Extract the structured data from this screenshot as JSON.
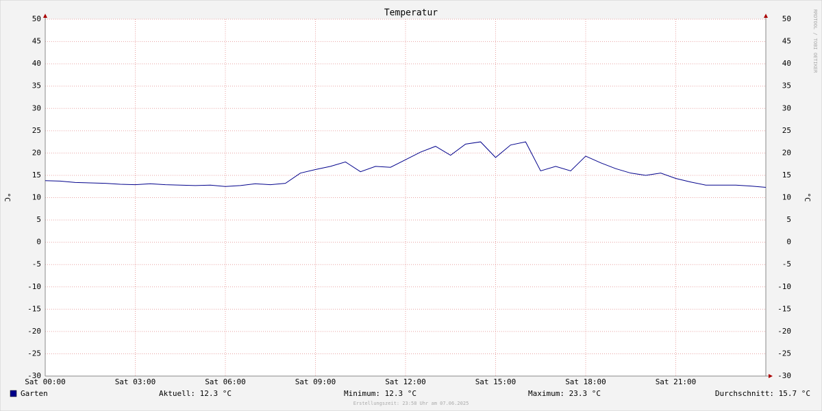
{
  "chart_data": {
    "type": "line",
    "title": "Temperatur",
    "y_label": "°C",
    "xlim": [
      0,
      24
    ],
    "xticks": [
      {
        "value": 0,
        "label": "Sat 00:00"
      },
      {
        "value": 3,
        "label": "Sat 03:00"
      },
      {
        "value": 6,
        "label": "Sat 06:00"
      },
      {
        "value": 9,
        "label": "Sat 09:00"
      },
      {
        "value": 12,
        "label": "Sat 12:00"
      },
      {
        "value": 15,
        "label": "Sat 15:00"
      },
      {
        "value": 18,
        "label": "Sat 18:00"
      },
      {
        "value": 21,
        "label": "Sat 21:00"
      }
    ],
    "ylim": [
      -30,
      50
    ],
    "yticks": [
      -30,
      -25,
      -20,
      -15,
      -10,
      -5,
      0,
      5,
      10,
      15,
      20,
      25,
      30,
      35,
      40,
      45,
      50
    ],
    "grid": true,
    "x": [
      0,
      0.5,
      1,
      1.5,
      2,
      2.5,
      3,
      3.5,
      4,
      4.5,
      5,
      5.5,
      6,
      6.5,
      7,
      7.5,
      8,
      8.5,
      9,
      9.5,
      10,
      10.5,
      11,
      11.5,
      12,
      12.5,
      13,
      13.5,
      14,
      14.5,
      15,
      15.5,
      16,
      16.5,
      17,
      17.5,
      18,
      18.5,
      19,
      19.5,
      20,
      20.5,
      21,
      21.5,
      22,
      22.5,
      23,
      23.5,
      24
    ],
    "series": [
      {
        "name": "Garten",
        "color": "#00008b",
        "values": [
          13.8,
          13.7,
          13.4,
          13.3,
          13.2,
          13.0,
          12.9,
          13.1,
          12.9,
          12.8,
          12.7,
          12.8,
          12.5,
          12.7,
          13.1,
          12.9,
          13.2,
          15.5,
          16.3,
          17.0,
          18.0,
          15.8,
          17.0,
          16.8,
          18.5,
          20.2,
          21.5,
          19.5,
          22.0,
          22.5,
          19.0,
          21.8,
          22.5,
          16.0,
          17.0,
          16.0,
          19.3,
          17.8,
          16.5,
          15.5,
          15.0,
          15.5,
          14.3,
          13.5,
          12.8,
          12.8,
          12.8,
          12.6,
          12.3
        ]
      }
    ],
    "stats": [
      "Aktuell: 12.3 °C",
      "Minimum: 12.3 °C",
      "Maximum: 23.3 °C",
      "Durchschnitt: 15.7 °C"
    ],
    "footer": "Erstellungszeit: 23:58 Uhr am 07.06.2025",
    "watermark": "RRDTOOL / TOBI OETIKER"
  }
}
